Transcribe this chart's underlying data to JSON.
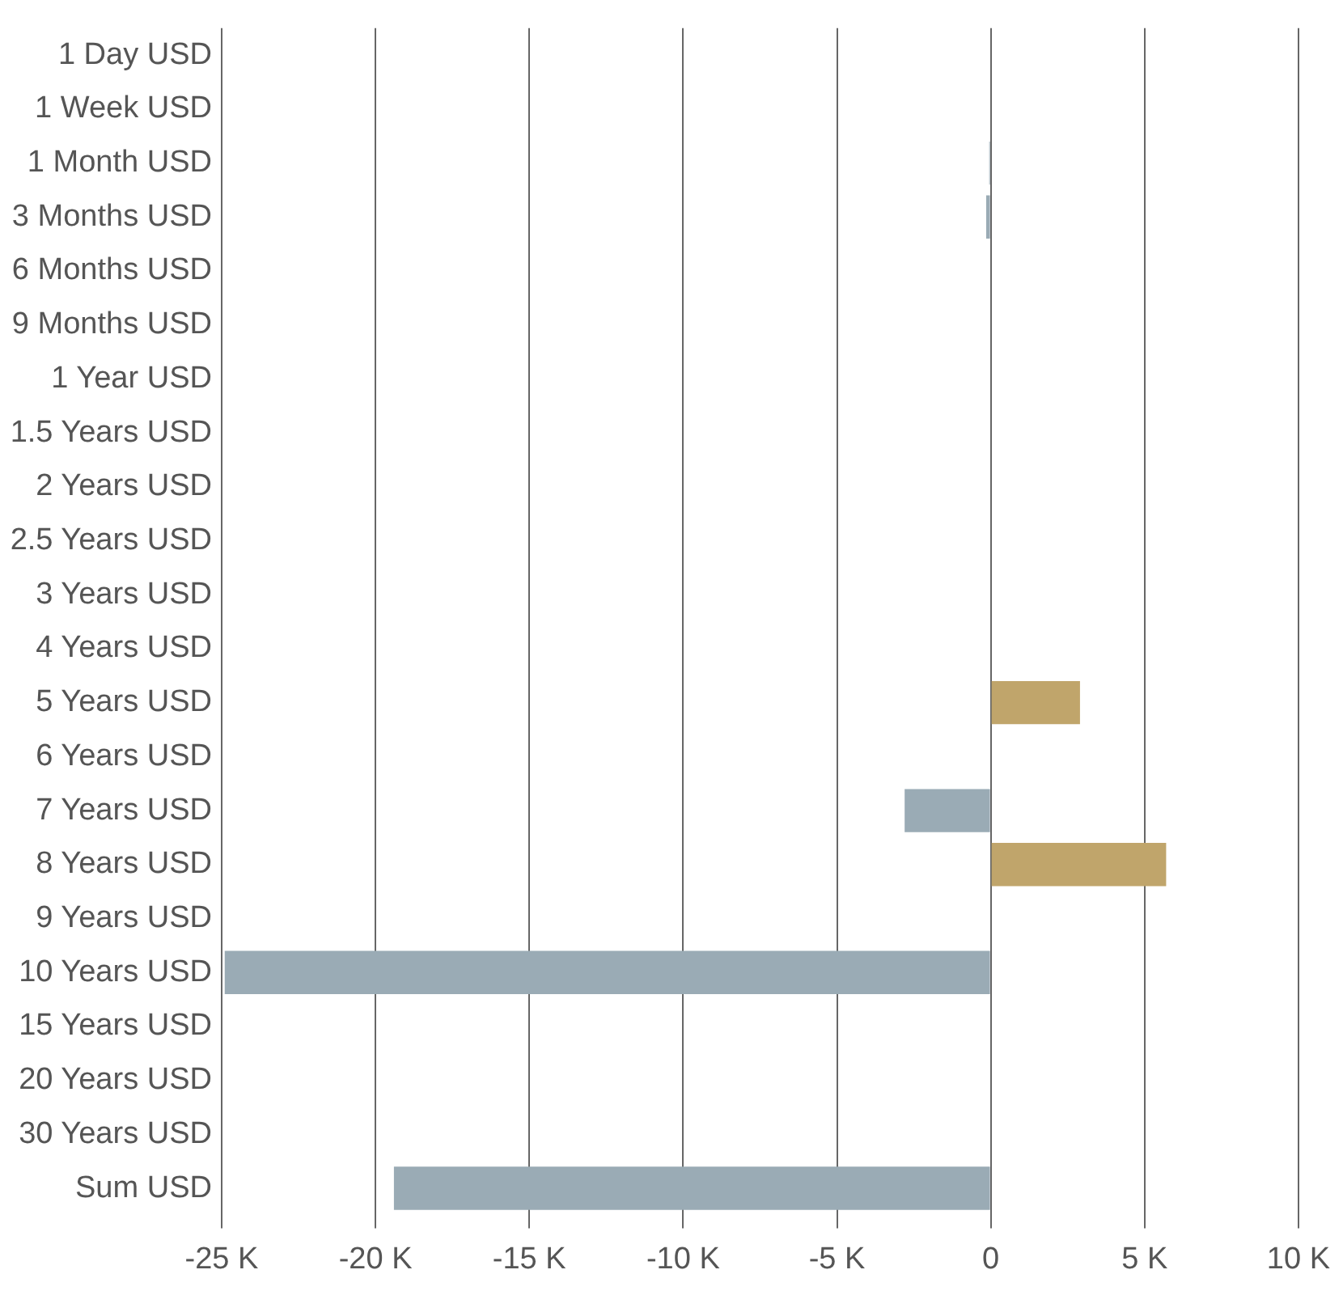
{
  "chart_data": {
    "type": "bar",
    "orientation": "horizontal",
    "categories": [
      "1 Day USD",
      "1 Week USD",
      "1 Month USD",
      "3 Months USD",
      "6 Months USD",
      "9 Months USD",
      "1 Year USD",
      "1.5 Years USD",
      "2 Years USD",
      "2.5 Years USD",
      "3 Years USD",
      "4 Years USD",
      "5 Years USD",
      "6 Years USD",
      "7 Years USD",
      "8 Years USD",
      "9 Years USD",
      "10 Years USD",
      "15 Years USD",
      "20 Years USD",
      "30 Years USD",
      "Sum USD"
    ],
    "values": [
      0,
      0,
      -50,
      -150,
      0,
      0,
      0,
      0,
      0,
      0,
      0,
      0,
      2900,
      0,
      -2800,
      5700,
      0,
      -24900,
      0,
      0,
      0,
      -19400
    ],
    "colors": [
      "#c0a56b",
      "#c0a56b",
      "#9aabb5",
      "#9aabb5",
      "#c0a56b",
      "#c0a56b",
      "#c0a56b",
      "#c0a56b",
      "#c0a56b",
      "#c0a56b",
      "#c0a56b",
      "#c0a56b",
      "#c0a56b",
      "#c0a56b",
      "#9aabb5",
      "#c0a56b",
      "#c0a56b",
      "#9aabb5",
      "#c0a56b",
      "#c0a56b",
      "#c0a56b",
      "#9aabb5"
    ],
    "xlim": [
      -25000,
      10000
    ],
    "xticks": [
      {
        "value": -25000,
        "label": "-25 K"
      },
      {
        "value": -20000,
        "label": "-20 K"
      },
      {
        "value": -15000,
        "label": "-15 K"
      },
      {
        "value": -10000,
        "label": "-10 K"
      },
      {
        "value": -5000,
        "label": "-5 K"
      },
      0,
      {
        "value": 5000,
        "label": "5 K"
      },
      {
        "value": 10000,
        "label": "10 K"
      }
    ],
    "grid": "x"
  }
}
